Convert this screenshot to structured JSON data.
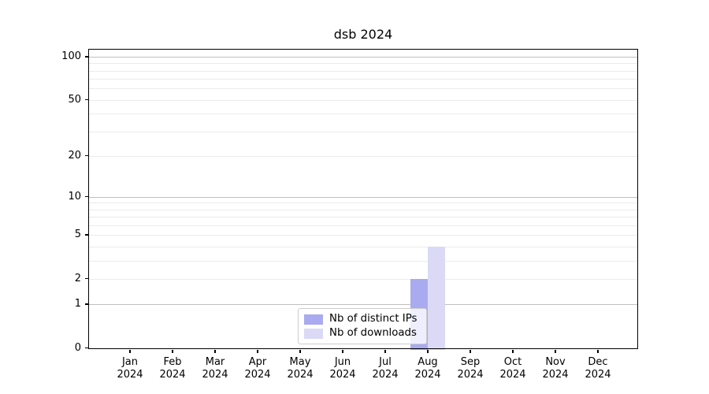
{
  "chart_data": {
    "type": "bar",
    "title": "dsb 2024",
    "categories": [
      "Jan",
      "Feb",
      "Mar",
      "Apr",
      "May",
      "Jun",
      "Jul",
      "Aug",
      "Sep",
      "Oct",
      "Nov",
      "Dec"
    ],
    "category_year": "2024",
    "series": [
      {
        "name": "Nb of distinct IPs",
        "color": "#aaaaf0",
        "values": [
          0,
          0,
          0,
          0,
          0,
          0,
          0,
          2,
          0,
          0,
          0,
          0
        ]
      },
      {
        "name": "Nb of downloads",
        "color": "#dadaf7",
        "values": [
          0,
          0,
          0,
          0,
          0,
          0,
          0,
          4,
          0,
          0,
          0,
          0
        ]
      }
    ],
    "yscale": "log1p",
    "ylim": [
      0,
      112
    ],
    "yticks_labeled": [
      0,
      1,
      2,
      5,
      10,
      20,
      50,
      100
    ],
    "gridlines_decade": [
      1,
      10,
      100
    ],
    "gridlines_light": [
      2,
      3,
      4,
      5,
      6,
      7,
      8,
      9,
      20,
      30,
      40,
      50,
      60,
      70,
      80,
      90
    ],
    "grid": true,
    "legend_position": "bottom-center",
    "colors": {
      "grid_decade": "#c0c0c0",
      "grid_light": "#ebebeb",
      "spine": "#000000",
      "legend_border": "#cccccc"
    }
  }
}
